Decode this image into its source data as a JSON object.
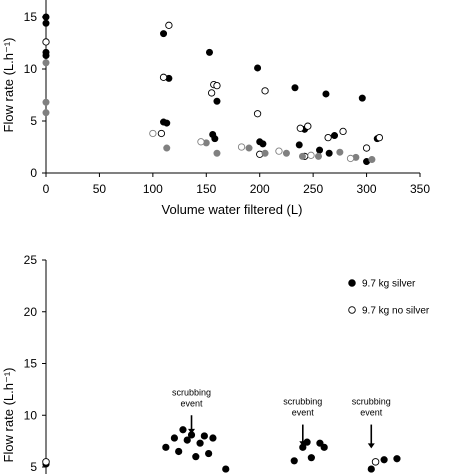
{
  "chart_data": [
    {
      "type": "scatter",
      "xlabel": "Volume water filtered (L)",
      "ylabel": "Flow rate (L.h⁻¹)",
      "xlim": [
        0,
        350
      ],
      "ylim": [
        0,
        15
      ],
      "xticks": [
        "0",
        "50",
        "100",
        "150",
        "200",
        "250",
        "300",
        "350"
      ],
      "yticks": [
        "0",
        "5",
        "10",
        "15"
      ],
      "grid": false,
      "series": [
        {
          "color": "#000000",
          "marker": "filled",
          "x": [
            0,
            0,
            0,
            0,
            110,
            110,
            113,
            115,
            153,
            156,
            158,
            160,
            198,
            200,
            203,
            233,
            237,
            242,
            256,
            262,
            265,
            270,
            296,
            300,
            310
          ],
          "y": [
            15.0,
            14.4,
            11.6,
            11.3,
            13.4,
            4.9,
            4.8,
            9.1,
            11.6,
            3.7,
            3.3,
            6.9,
            10.1,
            3.0,
            2.8,
            8.2,
            2.7,
            4.2,
            2.2,
            7.6,
            1.9,
            3.6,
            7.2,
            1.1,
            3.3
          ]
        },
        {
          "color": "#000000",
          "marker": "open",
          "x": [
            0,
            108,
            110,
            115,
            155,
            157,
            160,
            198,
            200,
            205,
            238,
            242,
            245,
            264,
            278,
            300,
            312
          ],
          "y": [
            12.6,
            3.8,
            9.2,
            14.2,
            7.7,
            8.5,
            8.4,
            5.7,
            1.8,
            7.9,
            4.3,
            1.6,
            4.5,
            3.4,
            4.0,
            2.4,
            3.4
          ]
        },
        {
          "color": "#808080",
          "marker": "filled",
          "x": [
            0,
            0,
            0,
            113,
            150,
            160,
            190,
            205,
            225,
            240,
            255,
            275,
            290,
            305
          ],
          "y": [
            10.6,
            6.8,
            5.8,
            2.4,
            2.9,
            1.9,
            2.4,
            1.9,
            1.9,
            1.6,
            1.6,
            2.0,
            1.5,
            1.3
          ]
        },
        {
          "color": "#808080",
          "marker": "open",
          "x": [
            100,
            145,
            183,
            218,
            248,
            285
          ],
          "y": [
            3.8,
            3.0,
            2.5,
            2.1,
            1.7,
            1.4
          ]
        }
      ]
    },
    {
      "type": "scatter",
      "ylabel": "Flow rate (L.h⁻¹)",
      "ylim": [
        5,
        25
      ],
      "yticks": [
        "5",
        "10",
        "15",
        "20",
        "25"
      ],
      "grid": false,
      "series": [
        {
          "name": "9.7 kg silver",
          "color": "#000000",
          "marker": "filled",
          "x": [
            0.0,
            0.28,
            0.3,
            0.31,
            0.32,
            0.33,
            0.34,
            0.35,
            0.36,
            0.37,
            0.38,
            0.39,
            0.42,
            0.58,
            0.6,
            0.61,
            0.62,
            0.64,
            0.65,
            0.76,
            0.79,
            0.82
          ],
          "y": [
            5.3,
            6.9,
            7.8,
            6.5,
            8.6,
            7.6,
            8.1,
            6.0,
            7.3,
            8.0,
            6.3,
            7.8,
            4.8,
            5.6,
            6.9,
            7.4,
            5.9,
            7.3,
            6.9,
            4.8,
            5.7,
            5.8
          ]
        },
        {
          "name": "9.7 kg no silver",
          "color": "#000000",
          "marker": "open",
          "x": [
            0.0,
            0.77
          ],
          "y": [
            5.5,
            5.5
          ]
        }
      ],
      "annotations": [
        {
          "text": [
            "scrubbing",
            "event"
          ],
          "x": 0.34,
          "y_arrow_top": 10.0,
          "y_arrow_bottom": 8.2
        },
        {
          "text": [
            "scrubbing",
            "event"
          ],
          "x": 0.6,
          "y_arrow_top": 9.1,
          "y_arrow_bottom": 7.0
        },
        {
          "text": [
            "scrubbing",
            "event"
          ],
          "x": 0.76,
          "y_arrow_top": 9.1,
          "y_arrow_bottom": 6.8
        }
      ],
      "legend_position": "top-right"
    }
  ]
}
